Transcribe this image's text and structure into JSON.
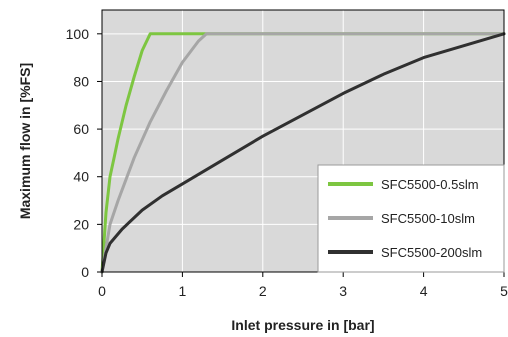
{
  "chart_data": {
    "type": "line",
    "xlabel": "Inlet pressure in [bar]",
    "ylabel": "Maximum flow in  [%FS]",
    "xlim": [
      0,
      5
    ],
    "ylim": [
      0,
      110
    ],
    "x_ticks": [
      0,
      1,
      2,
      3,
      4,
      5
    ],
    "y_ticks": [
      0,
      20,
      40,
      60,
      80,
      100
    ],
    "grid": "both",
    "legend_position": "bottom-right",
    "series": [
      {
        "name": "SFC5500-0.5slm",
        "color": "#7dc641",
        "points": [
          [
            0,
            0
          ],
          [
            0.05,
            25
          ],
          [
            0.1,
            40
          ],
          [
            0.15,
            48
          ],
          [
            0.2,
            56
          ],
          [
            0.3,
            70
          ],
          [
            0.4,
            82
          ],
          [
            0.5,
            93
          ],
          [
            0.6,
            100
          ],
          [
            5,
            100
          ]
        ]
      },
      {
        "name": "SFC5500-10slm",
        "color": "#a6a6a6",
        "points": [
          [
            0,
            0
          ],
          [
            0.1,
            20
          ],
          [
            0.2,
            30
          ],
          [
            0.4,
            48
          ],
          [
            0.6,
            63
          ],
          [
            0.8,
            76
          ],
          [
            1.0,
            88
          ],
          [
            1.2,
            97
          ],
          [
            1.3,
            100
          ],
          [
            5,
            100
          ]
        ]
      },
      {
        "name": "SFC5500-200slm",
        "color": "#303030",
        "points": [
          [
            0,
            0
          ],
          [
            0.05,
            8
          ],
          [
            0.1,
            12
          ],
          [
            0.25,
            18
          ],
          [
            0.5,
            26
          ],
          [
            0.75,
            32
          ],
          [
            1.0,
            37
          ],
          [
            1.5,
            47
          ],
          [
            2.0,
            57
          ],
          [
            2.5,
            66
          ],
          [
            3.0,
            75
          ],
          [
            3.5,
            83
          ],
          [
            4.0,
            90
          ],
          [
            4.5,
            95
          ],
          [
            4.8,
            98
          ],
          [
            5.0,
            100
          ]
        ]
      }
    ]
  }
}
